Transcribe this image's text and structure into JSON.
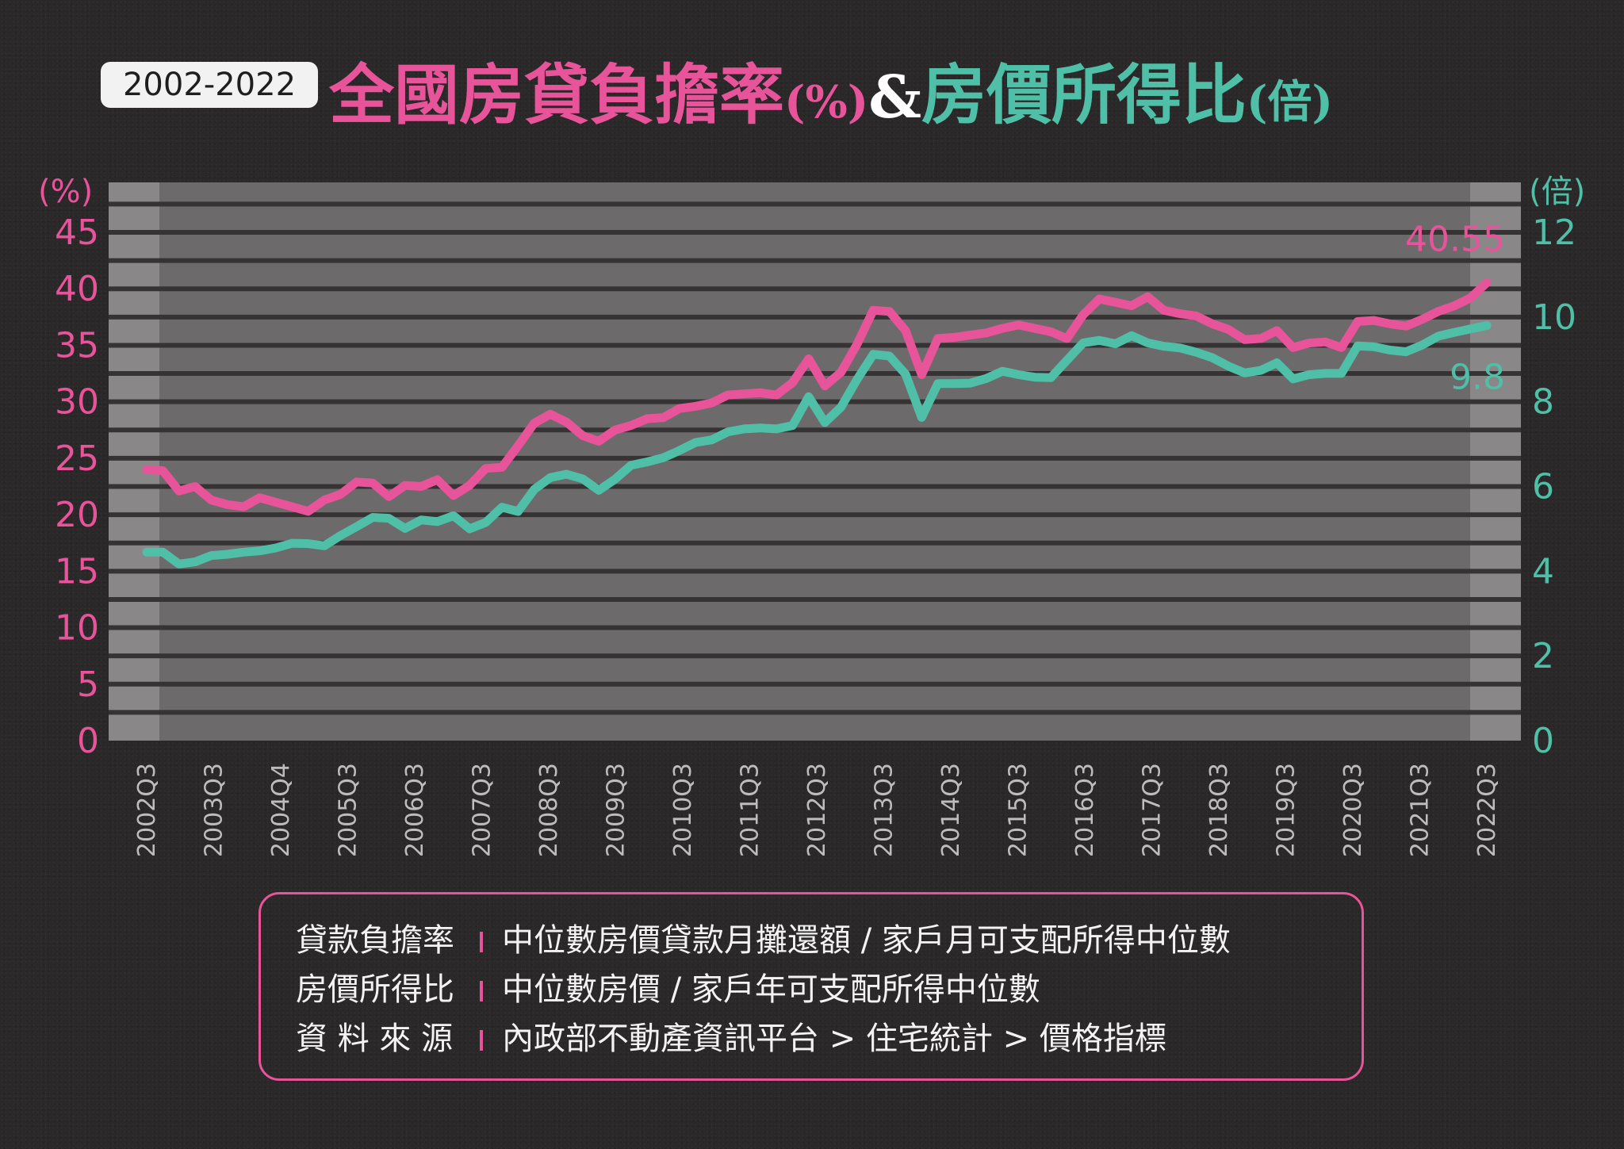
{
  "header": {
    "period": "2002-2022",
    "title_part1": "全國房貸負擔率",
    "title_unit1": "(%)",
    "title_amp": "&",
    "title_part2": "房價所得比",
    "title_unit2": "(倍)"
  },
  "legend": {
    "rows": [
      {
        "term": "貸款負擔率",
        "definition": "中位數房價貸款月攤還額 / 家戶月可支配所得中位數"
      },
      {
        "term": "房價所得比",
        "definition": "中位數房價 / 家戶年可支配所得中位數"
      },
      {
        "term": "資 料 來 源",
        "definition": "內政部不動產資訊平台 > 住宅統計 > 價格指標"
      }
    ]
  },
  "colors": {
    "burden": "#e8549a",
    "ratio": "#4fbfa7",
    "plot_bg": "#6d6a6b",
    "grid": "#363334"
  },
  "chart_data": {
    "type": "line",
    "x_tick_labels": [
      "2002Q3",
      "2003Q3",
      "2004Q4",
      "2005Q3",
      "2006Q3",
      "2007Q3",
      "2008Q3",
      "2009Q3",
      "2010Q3",
      "2011Q3",
      "2012Q3",
      "2013Q3",
      "2014Q3",
      "2015Q3",
      "2016Q3",
      "2017Q3",
      "2018Q3",
      "2019Q3",
      "2020Q3",
      "2021Q3",
      "2022Q3"
    ],
    "left_axis": {
      "unit_label": "(%)",
      "min": 0,
      "max": 45,
      "ticks": [
        0,
        5,
        10,
        15,
        20,
        25,
        30,
        35,
        40,
        45
      ]
    },
    "right_axis": {
      "unit_label": "(倍)",
      "min": 0,
      "max": 12,
      "ticks": [
        0,
        2,
        4,
        6,
        8,
        10,
        12
      ]
    },
    "series": [
      {
        "axis": "left",
        "end_label": "40.55",
        "values": [
          24.0,
          23.9,
          22.1,
          22.5,
          21.3,
          20.9,
          20.7,
          21.5,
          21.1,
          20.7,
          20.3,
          21.3,
          21.8,
          22.9,
          22.8,
          21.6,
          22.6,
          22.5,
          23.1,
          21.7,
          22.6,
          24.1,
          24.2,
          26.1,
          28.1,
          28.9,
          28.2,
          27.0,
          26.5,
          27.5,
          27.9,
          28.5,
          28.6,
          29.4,
          29.6,
          29.9,
          30.6,
          30.7,
          30.8,
          30.6,
          31.7,
          33.8,
          31.4,
          32.6,
          35.1,
          38.1,
          38.0,
          36.3,
          32.4,
          35.6,
          35.7,
          35.9,
          36.1,
          36.5,
          36.8,
          36.5,
          36.2,
          35.6,
          37.7,
          39.1,
          38.8,
          38.5,
          39.3,
          38.1,
          37.8,
          37.6,
          36.9,
          36.4,
          35.5,
          35.6,
          36.3,
          34.8,
          35.2,
          35.3,
          34.8,
          37.1,
          37.2,
          36.9,
          36.7,
          37.3,
          38.0,
          38.5,
          39.2,
          40.55
        ]
      },
      {
        "axis": "right",
        "end_label": "9.8",
        "values": [
          4.45,
          4.45,
          4.17,
          4.22,
          4.37,
          4.4,
          4.45,
          4.48,
          4.55,
          4.66,
          4.65,
          4.6,
          4.84,
          5.05,
          5.27,
          5.25,
          5.01,
          5.21,
          5.17,
          5.31,
          5.0,
          5.15,
          5.51,
          5.41,
          5.93,
          6.21,
          6.29,
          6.18,
          5.91,
          6.17,
          6.5,
          6.58,
          6.68,
          6.85,
          7.04,
          7.1,
          7.29,
          7.36,
          7.38,
          7.36,
          7.44,
          8.12,
          7.51,
          7.87,
          8.53,
          9.12,
          9.08,
          8.65,
          7.63,
          8.43,
          8.43,
          8.44,
          8.55,
          8.72,
          8.64,
          8.58,
          8.57,
          8.98,
          9.39,
          9.45,
          9.37,
          9.56,
          9.39,
          9.31,
          9.27,
          9.17,
          9.04,
          8.84,
          8.68,
          8.74,
          8.92,
          8.54,
          8.64,
          8.67,
          8.67,
          9.32,
          9.3,
          9.22,
          9.18,
          9.34,
          9.55,
          9.64,
          9.72,
          9.8
        ]
      }
    ],
    "grid": true
  }
}
